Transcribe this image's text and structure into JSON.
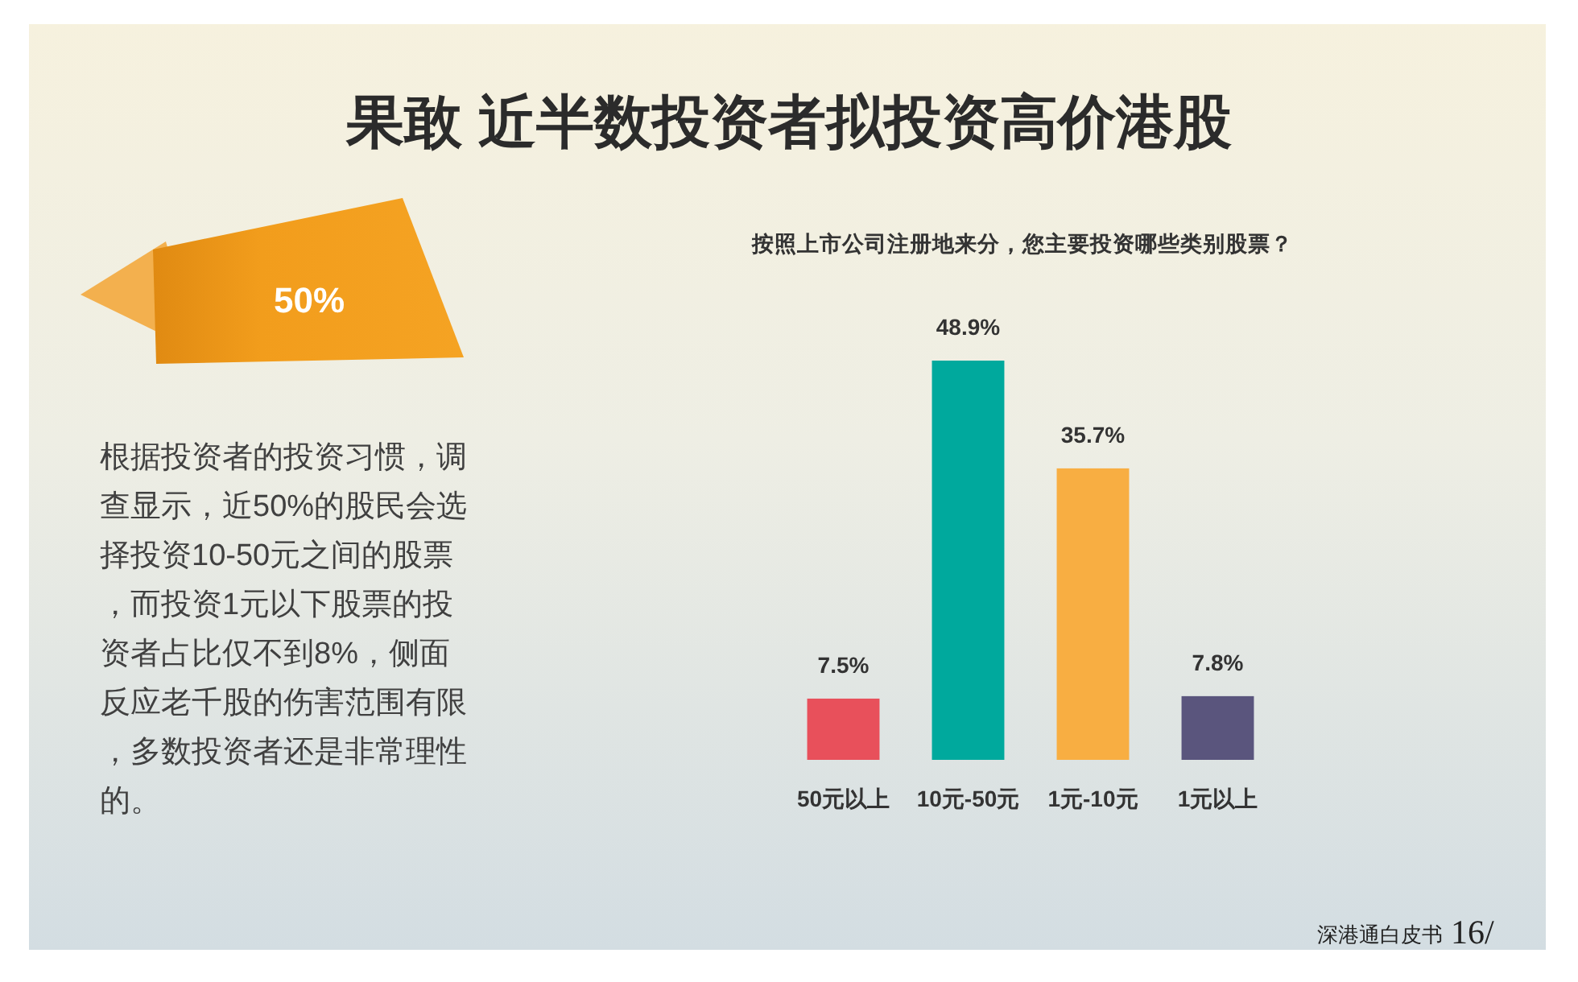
{
  "chart_data": {
    "type": "bar",
    "title": "果敢 近半数投资者拟投资高价港股",
    "subtitle": "按照上市公司注册地来分，您主要投资哪些类别股票？",
    "categories": [
      "50元以上",
      "10元-50元",
      "1元-10元",
      "1元以上"
    ],
    "values": [
      7.5,
      48.9,
      35.7,
      7.8
    ],
    "colors": [
      "#e8505b",
      "#00a99d",
      "#f8ae42",
      "#5a557d"
    ],
    "value_labels": [
      "7.5%",
      "48.9%",
      "35.7%",
      "7.8%"
    ],
    "annotations": [
      "50%",
      "根据投资者的投资习惯，调查显示，近50%的股民会选择投资10-50元之间的股票，而投资1元以下股票的投资者占比仅不到8%，侧面反应老千股的伤害范围有限，多数投资者还是非常理性的。",
      "深港通白皮书",
      "16/"
    ]
  }
}
